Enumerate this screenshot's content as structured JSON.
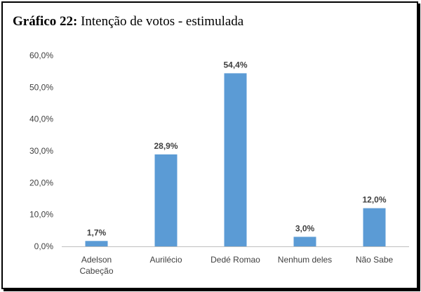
{
  "title": {
    "prefix": "Gráfico 22:",
    "text": "Intenção de votos - estimulada"
  },
  "chart_data": {
    "type": "bar",
    "categories": [
      "Adelson Cabeção",
      "Aurilécio",
      "Dedé Romao",
      "Nenhum deles",
      "Não Sabe"
    ],
    "category_lines": [
      [
        "Adelson",
        "Cabeção"
      ],
      [
        "Aurilécio"
      ],
      [
        "Dedé Romao"
      ],
      [
        "Nenhum deles"
      ],
      [
        "Não Sabe"
      ]
    ],
    "values": [
      1.7,
      28.9,
      54.4,
      3.0,
      12.0
    ],
    "data_labels": [
      "1,7%",
      "28,9%",
      "54,4%",
      "3,0%",
      "12,0%"
    ],
    "ylim": [
      0,
      60
    ],
    "y_ticks": [
      0,
      10,
      20,
      30,
      40,
      50,
      60
    ],
    "y_tick_labels": [
      "0,0%",
      "10,0%",
      "20,0%",
      "30,0%",
      "40,0%",
      "50,0%",
      "60,0%"
    ],
    "bar_color": "#5b9bd5",
    "axis_color": "#bfbfbf",
    "grid": false
  }
}
